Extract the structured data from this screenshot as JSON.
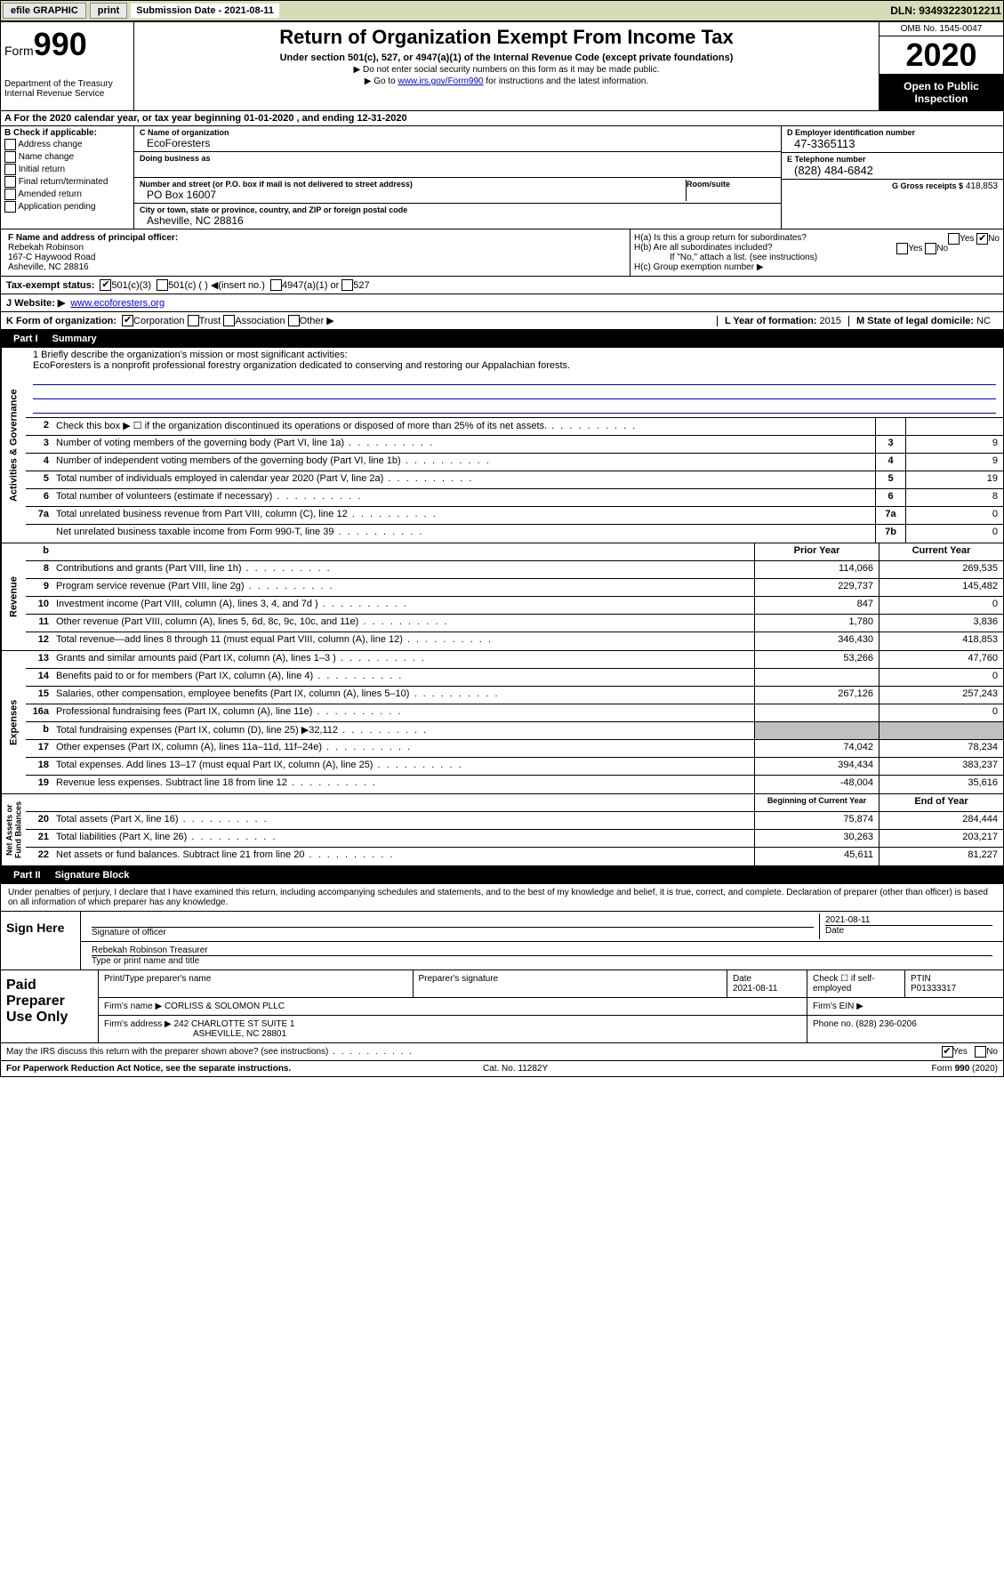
{
  "topbar": {
    "efile": "efile GRAPHIC",
    "print": "print",
    "sub_date_label": "Submission Date - 2021-08-11",
    "dln": "DLN: 93493223012211"
  },
  "header": {
    "form_label": "Form",
    "form_number": "990",
    "dept": "Department of the Treasury\nInternal Revenue Service",
    "title": "Return of Organization Exempt From Income Tax",
    "subtitle": "Under section 501(c), 527, or 4947(a)(1) of the Internal Revenue Code (except private foundations)",
    "note1": "▶ Do not enter social security numbers on this form as it may be made public.",
    "note2_pre": "▶ Go to ",
    "note2_link": "www.irs.gov/Form990",
    "note2_post": " for instructions and the latest information.",
    "omb": "OMB No. 1545-0047",
    "year": "2020",
    "open_public": "Open to Public Inspection"
  },
  "period": "A For the 2020 calendar year, or tax year beginning 01-01-2020    , and ending 12-31-2020",
  "box_b": {
    "title": "B Check if applicable:",
    "opts": [
      "Address change",
      "Name change",
      "Initial return",
      "Final return/terminated",
      "Amended return",
      "Application pending"
    ]
  },
  "box_c": {
    "name_label": "C Name of organization",
    "name": "EcoForesters",
    "dba_label": "Doing business as",
    "addr_label": "Number and street (or P.O. box if mail is not delivered to street address)",
    "addr": "PO Box 16007",
    "room_label": "Room/suite",
    "city_label": "City or town, state or province, country, and ZIP or foreign postal code",
    "city": "Asheville, NC  28816"
  },
  "box_d": {
    "label": "D Employer identification number",
    "val": "47-3365113"
  },
  "box_e": {
    "label": "E Telephone number",
    "val": "(828) 484-6842"
  },
  "box_g": {
    "label": "G Gross receipts $",
    "val": "418,853"
  },
  "box_f": {
    "label": "F  Name and address of principal officer:",
    "name": "Rebekah Robinson",
    "addr1": "167-C Haywood Road",
    "addr2": "Asheville, NC  28816"
  },
  "box_h": {
    "ha": "H(a)  Is this a group return for subordinates?",
    "hb": "H(b)  Are all subordinates included?",
    "hb_note": "If \"No,\" attach a list. (see instructions)",
    "hc": "H(c)  Group exemption number ▶",
    "ha_ans": "No"
  },
  "tax_status": {
    "label": "Tax-exempt status:",
    "c3": "501(c)(3)",
    "c": "501(c) (  ) ◀(insert no.)",
    "a1": "4947(a)(1) or",
    "s527": "527"
  },
  "website": {
    "label": "J   Website: ▶",
    "val": "www.ecoforesters.org"
  },
  "line_k": {
    "label": "K Form of organization:",
    "opts": [
      "Corporation",
      "Trust",
      "Association",
      "Other ▶"
    ],
    "l_label": "L Year of formation:",
    "l_val": "2015",
    "m_label": "M State of legal domicile:",
    "m_val": "NC"
  },
  "part1": {
    "num": "Part I",
    "title": "Summary"
  },
  "mission": {
    "q": "1  Briefly describe the organization's mission or most significant activities:",
    "text": "EcoForesters is a nonprofit professional forestry organization dedicated to conserving and restoring our Appalachian forests."
  },
  "gov_rows": [
    {
      "n": "2",
      "d": "Check this box ▶ ☐  if the organization discontinued its operations or disposed of more than 25% of its net assets.",
      "bn": "",
      "v": ""
    },
    {
      "n": "3",
      "d": "Number of voting members of the governing body (Part VI, line 1a)",
      "bn": "3",
      "v": "9"
    },
    {
      "n": "4",
      "d": "Number of independent voting members of the governing body (Part VI, line 1b)",
      "bn": "4",
      "v": "9"
    },
    {
      "n": "5",
      "d": "Total number of individuals employed in calendar year 2020 (Part V, line 2a)",
      "bn": "5",
      "v": "19"
    },
    {
      "n": "6",
      "d": "Total number of volunteers (estimate if necessary)",
      "bn": "6",
      "v": "8"
    },
    {
      "n": "7a",
      "d": "Total unrelated business revenue from Part VIII, column (C), line 12",
      "bn": "7a",
      "v": "0"
    },
    {
      "n": "",
      "d": "Net unrelated business taxable income from Form 990-T, line 39",
      "bn": "7b",
      "v": "0"
    }
  ],
  "two_col_hdr": {
    "b": "b",
    "prior": "Prior Year",
    "curr": "Current Year"
  },
  "rev_rows": [
    {
      "n": "8",
      "d": "Contributions and grants (Part VIII, line 1h)",
      "p": "114,066",
      "c": "269,535"
    },
    {
      "n": "9",
      "d": "Program service revenue (Part VIII, line 2g)",
      "p": "229,737",
      "c": "145,482"
    },
    {
      "n": "10",
      "d": "Investment income (Part VIII, column (A), lines 3, 4, and 7d )",
      "p": "847",
      "c": "0"
    },
    {
      "n": "11",
      "d": "Other revenue (Part VIII, column (A), lines 5, 6d, 8c, 9c, 10c, and 11e)",
      "p": "1,780",
      "c": "3,836"
    },
    {
      "n": "12",
      "d": "Total revenue—add lines 8 through 11 (must equal Part VIII, column (A), line 12)",
      "p": "346,430",
      "c": "418,853"
    }
  ],
  "exp_rows": [
    {
      "n": "13",
      "d": "Grants and similar amounts paid (Part IX, column (A), lines 1–3 )",
      "p": "53,266",
      "c": "47,760"
    },
    {
      "n": "14",
      "d": "Benefits paid to or for members (Part IX, column (A), line 4)",
      "p": "",
      "c": "0"
    },
    {
      "n": "15",
      "d": "Salaries, other compensation, employee benefits (Part IX, column (A), lines 5–10)",
      "p": "267,126",
      "c": "257,243"
    },
    {
      "n": "16a",
      "d": "Professional fundraising fees (Part IX, column (A), line 11e)",
      "p": "",
      "c": "0"
    },
    {
      "n": "b",
      "d": "Total fundraising expenses (Part IX, column (D), line 25) ▶32,112",
      "p": "grey",
      "c": "grey"
    },
    {
      "n": "17",
      "d": "Other expenses (Part IX, column (A), lines 11a–11d, 11f–24e)",
      "p": "74,042",
      "c": "78,234"
    },
    {
      "n": "18",
      "d": "Total expenses. Add lines 13–17 (must equal Part IX, column (A), line 25)",
      "p": "394,434",
      "c": "383,237"
    },
    {
      "n": "19",
      "d": "Revenue less expenses. Subtract line 18 from line 12",
      "p": "-48,004",
      "c": "35,616"
    }
  ],
  "na_hdr": {
    "b": "Beginning of Current Year",
    "e": "End of Year"
  },
  "na_rows": [
    {
      "n": "20",
      "d": "Total assets (Part X, line 16)",
      "p": "75,874",
      "c": "284,444"
    },
    {
      "n": "21",
      "d": "Total liabilities (Part X, line 26)",
      "p": "30,263",
      "c": "203,217"
    },
    {
      "n": "22",
      "d": "Net assets or fund balances. Subtract line 21 from line 20",
      "p": "45,611",
      "c": "81,227"
    }
  ],
  "side": {
    "gov": "Activities & Governance",
    "rev": "Revenue",
    "exp": "Expenses",
    "na": "Net Assets or\nFund Balances"
  },
  "part2": {
    "num": "Part II",
    "title": "Signature Block"
  },
  "sig": {
    "decl": "Under penalties of perjury, I declare that I have examined this return, including accompanying schedules and statements, and to the best of my knowledge and belief, it is true, correct, and complete. Declaration of preparer (other than officer) is based on all information of which preparer has any knowledge.",
    "sign_here": "Sign Here",
    "sig_label": "Signature of officer",
    "date": "2021-08-11",
    "date_label": "Date",
    "name": "Rebekah Robinson  Treasurer",
    "name_label": "Type or print name and title"
  },
  "paid": {
    "title": "Paid Preparer Use Only",
    "h1": "Print/Type preparer's name",
    "h2": "Preparer's signature",
    "h3_label": "Date",
    "h3": "2021-08-11",
    "h4": "Check ☐ if self-employed",
    "h5_label": "PTIN",
    "h5": "P01333317",
    "firm_label": "Firm's name    ▶",
    "firm": "CORLISS & SOLOMON PLLC",
    "ein_label": "Firm's EIN ▶",
    "addr_label": "Firm's address ▶",
    "addr1": "242 CHARLOTTE ST SUITE 1",
    "addr2": "ASHEVILLE, NC  28801",
    "phone_label": "Phone no.",
    "phone": "(828) 236-0206"
  },
  "discuss": {
    "q": "May the IRS discuss this return with the preparer shown above? (see instructions)",
    "yes": "Yes",
    "no": "No"
  },
  "footer": {
    "l": "For Paperwork Reduction Act Notice, see the separate instructions.",
    "m": "Cat. No. 11282Y",
    "r": "Form 990 (2020)"
  },
  "colors": {
    "topbar_bg": "#d8dbb8",
    "link": "#0000cc",
    "black": "#000000",
    "grey": "#c0c0c0"
  }
}
